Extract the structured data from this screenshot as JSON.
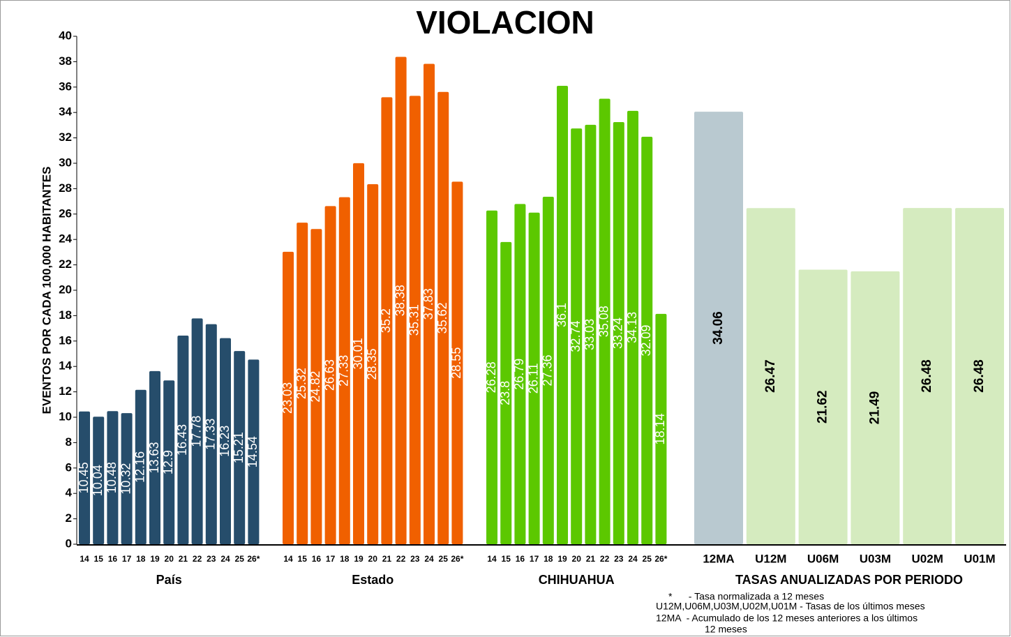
{
  "chart_data": {
    "type": "bar",
    "title": "VIOLACION",
    "y_label": "EVENTOS POR CADA 100,000 HABITANTES",
    "ylim": [
      0,
      40
    ],
    "yticks": [
      0,
      2,
      4,
      6,
      8,
      10,
      12,
      14,
      16,
      18,
      20,
      22,
      24,
      26,
      28,
      30,
      32,
      34,
      36,
      38,
      40
    ],
    "groups": [
      {
        "name": "País",
        "color": "#264d6b",
        "categories": [
          "14",
          "15",
          "16",
          "17",
          "18",
          "19",
          "20",
          "21",
          "22",
          "23",
          "24",
          "25",
          "26*"
        ],
        "values": [
          10.45,
          10.04,
          10.48,
          10.32,
          12.16,
          13.63,
          12.9,
          16.43,
          17.78,
          17.33,
          16.23,
          15.21,
          14.54
        ]
      },
      {
        "name": "Estado",
        "color": "#f06000",
        "categories": [
          "14",
          "15",
          "16",
          "17",
          "18",
          "19",
          "20",
          "21",
          "22",
          "23",
          "24",
          "25",
          "26*"
        ],
        "values": [
          23.03,
          25.32,
          24.82,
          26.63,
          27.33,
          30.01,
          28.35,
          35.2,
          38.38,
          35.31,
          37.83,
          35.62,
          28.55
        ]
      },
      {
        "name": "CHIHUAHUA",
        "color": "#5cc800",
        "categories": [
          "14",
          "15",
          "16",
          "17",
          "18",
          "19",
          "20",
          "21",
          "22",
          "23",
          "24",
          "25",
          "26*"
        ],
        "values": [
          26.28,
          23.8,
          26.79,
          26.11,
          27.36,
          36.1,
          32.74,
          33.03,
          35.08,
          33.24,
          34.13,
          32.09,
          18.14
        ]
      },
      {
        "name": "TASAS ANUALIZADAS POR PERIODO",
        "colors": [
          "#b9c9d0",
          "#d5ebbf",
          "#d5ebbf",
          "#d5ebbf",
          "#d5ebbf",
          "#d5ebbf"
        ],
        "categories": [
          "12MA",
          "U12M",
          "U06M",
          "U03M",
          "U02M",
          "U01M"
        ],
        "values": [
          34.06,
          26.47,
          21.62,
          21.49,
          26.48,
          26.48
        ]
      }
    ],
    "notes": [
      "*      - Tasa normalizada a 12 meses",
      "U12M,U06M,U03M,U02M,U01M - Tasas de los últimos meses",
      "12MA  - Acumulado de los 12 meses anteriores a los últimos",
      "12 meses"
    ]
  }
}
